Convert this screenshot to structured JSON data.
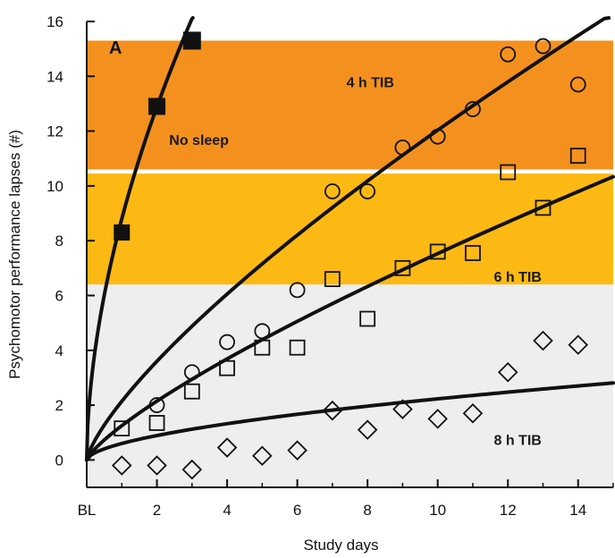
{
  "chart_data": {
    "type": "scatter",
    "panel_label": "A",
    "xlabel": "Study days",
    "ylabel": "Psychomotor performance lapses (#)",
    "xlim": [
      0,
      15
    ],
    "ylim": [
      -1,
      16
    ],
    "x_ticks": [
      {
        "value": 0,
        "label": "BL"
      },
      {
        "value": 2,
        "label": "2"
      },
      {
        "value": 4,
        "label": "4"
      },
      {
        "value": 6,
        "label": "6"
      },
      {
        "value": 8,
        "label": "8"
      },
      {
        "value": 10,
        "label": "10"
      },
      {
        "value": 12,
        "label": "12"
      },
      {
        "value": 14,
        "label": "14"
      }
    ],
    "y_ticks": [
      {
        "value": 0,
        "label": "0"
      },
      {
        "value": 2,
        "label": "2"
      },
      {
        "value": 4,
        "label": "4"
      },
      {
        "value": 6,
        "label": "6"
      },
      {
        "value": 8,
        "label": "8"
      },
      {
        "value": 10,
        "label": "10"
      },
      {
        "value": 12,
        "label": "12"
      },
      {
        "value": 14,
        "label": "14"
      },
      {
        "value": 16,
        "label": "16"
      }
    ],
    "bands": [
      {
        "label": "No sleep",
        "y0": 10.6,
        "y1": 15.3,
        "color": "#f4911e"
      },
      {
        "label": "",
        "y0": 6.4,
        "y1": 10.45,
        "color": "#fdb913"
      },
      {
        "label": "",
        "y0": -1,
        "y1": 6.4,
        "color": "#eeeeef"
      }
    ],
    "annotations": [
      {
        "text": "No sleep",
        "x": 2.35,
        "y": 11.5
      },
      {
        "text": "4 h TIB",
        "x": 7.4,
        "y": 13.6
      },
      {
        "text": "6 h TIB",
        "x": 11.6,
        "y": 6.5
      },
      {
        "text": "8 h TIB",
        "x": 11.6,
        "y": 0.55
      }
    ],
    "series": [
      {
        "name": "No sleep",
        "marker": "filled-square",
        "x": [
          1,
          2,
          3
        ],
        "y": [
          8.3,
          12.9,
          15.3
        ],
        "fit": {
          "a": 8.8,
          "b": 0.55,
          "x_max": 3.3
        }
      },
      {
        "name": "4 h TIB",
        "marker": "circle",
        "x": [
          2,
          3,
          4,
          5,
          6,
          7,
          8,
          9,
          10,
          11,
          12,
          13,
          14
        ],
        "y": [
          2.0,
          3.2,
          4.3,
          4.7,
          6.2,
          9.8,
          9.8,
          11.4,
          11.8,
          12.8,
          14.8,
          15.1,
          13.7
        ],
        "fit": {
          "a": 2.14,
          "b": 0.75,
          "x_max": 15
        }
      },
      {
        "name": "6 h TIB",
        "marker": "square",
        "x": [
          1,
          2,
          3,
          4,
          5,
          6,
          7,
          8,
          9,
          10,
          11,
          12,
          13,
          14
        ],
        "y": [
          1.15,
          1.35,
          2.5,
          3.35,
          4.1,
          4.1,
          6.6,
          5.15,
          7.0,
          7.6,
          7.55,
          10.5,
          9.2,
          11.1
        ],
        "fit": {
          "a": 1.25,
          "b": 0.78,
          "x_max": 15
        }
      },
      {
        "name": "8 h TIB",
        "marker": "diamond",
        "x": [
          1,
          2,
          3,
          4,
          5,
          6,
          7,
          8,
          9,
          10,
          11,
          12,
          13,
          14
        ],
        "y": [
          -0.2,
          -0.2,
          -0.35,
          0.45,
          0.15,
          0.35,
          1.8,
          1.1,
          1.85,
          1.5,
          1.7,
          3.2,
          4.35,
          4.2
        ],
        "fit": {
          "a": 0.6,
          "b": 0.57,
          "x_max": 15
        }
      }
    ]
  }
}
